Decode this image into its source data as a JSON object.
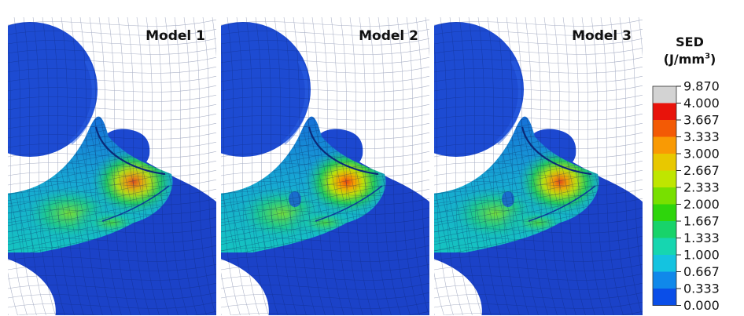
{
  "panels": [
    {
      "title": "Model 1",
      "hotspot": 0.92
    },
    {
      "title": "Model 2",
      "hotspot": 1.0
    },
    {
      "title": "Model 3",
      "hotspot": 0.96
    }
  ],
  "legend": {
    "title_line1": "SED",
    "title_unit": "(J/mm",
    "title_exp": "3",
    "title_close": ")",
    "levels": [
      "9.870",
      "4.000",
      "3.667",
      "3.333",
      "3.000",
      "2.667",
      "2.333",
      "2.000",
      "1.667",
      "1.333",
      "1.000",
      "0.667",
      "0.333",
      "0.000"
    ],
    "colors": [
      "#d3d3d3",
      "#e8130b",
      "#f35a05",
      "#f99a04",
      "#e8c800",
      "#bfe600",
      "#78e000",
      "#2ed50c",
      "#18d36a",
      "#16d6b0",
      "#14c3e0",
      "#1088ea",
      "#0a4ee8"
    ]
  }
}
